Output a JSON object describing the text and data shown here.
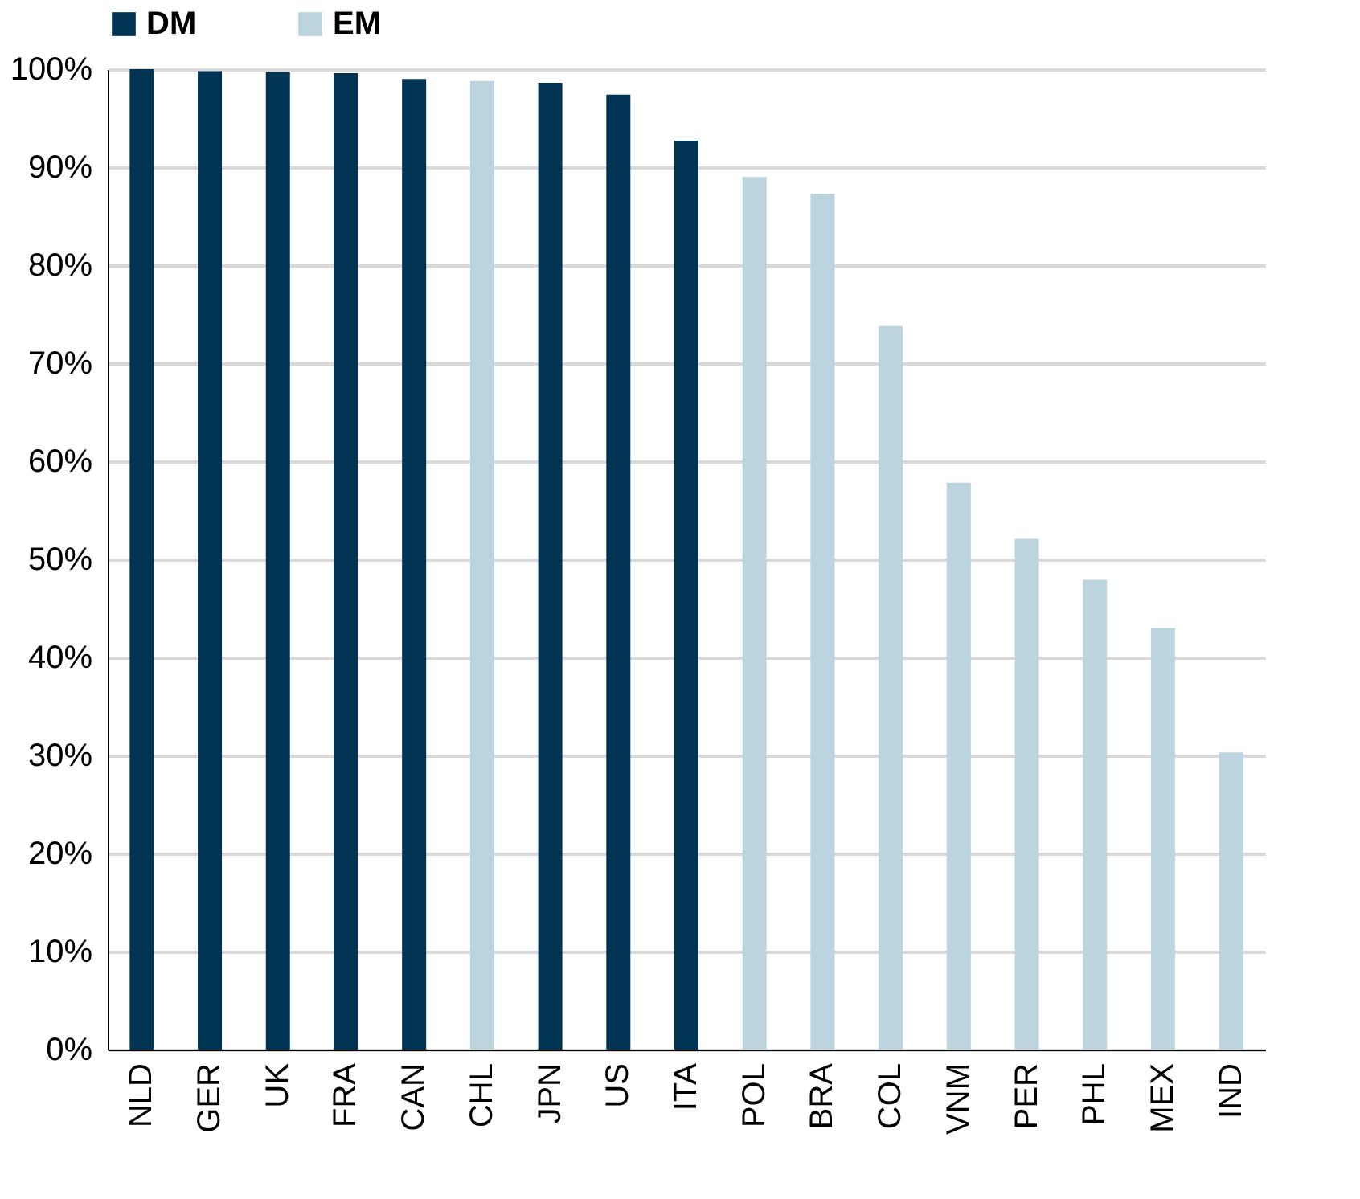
{
  "chart_data": {
    "type": "bar",
    "categories": [
      "NLD",
      "GER",
      "UK",
      "FRA",
      "CAN",
      "CHL",
      "JPN",
      "US",
      "ITA",
      "POL",
      "BRA",
      "COL",
      "VNM",
      "PER",
      "PHL",
      "MEX",
      "IND"
    ],
    "series": [
      {
        "name": "DM",
        "color": "#003452",
        "values": [
          100,
          99.8,
          99.7,
          99.6,
          99.0,
          null,
          98.6,
          97.4,
          92.7,
          null,
          null,
          null,
          null,
          null,
          null,
          null,
          null
        ]
      },
      {
        "name": "EM",
        "color": "#bcd4de",
        "values": [
          null,
          null,
          null,
          null,
          null,
          98.8,
          null,
          null,
          null,
          89.0,
          87.3,
          73.8,
          57.8,
          52.1,
          47.9,
          43.0,
          30.3
        ]
      }
    ],
    "ylim": [
      0,
      100
    ],
    "yticks": [
      {
        "value": 0,
        "label": "0%"
      },
      {
        "value": 10,
        "label": "10%"
      },
      {
        "value": 20,
        "label": "20%"
      },
      {
        "value": 30,
        "label": "30%"
      },
      {
        "value": 40,
        "label": "40%"
      },
      {
        "value": 50,
        "label": "50%"
      },
      {
        "value": 60,
        "label": "60%"
      },
      {
        "value": 70,
        "label": "70%"
      },
      {
        "value": 80,
        "label": "80%"
      },
      {
        "value": 90,
        "label": "90%"
      },
      {
        "value": 100,
        "label": "100%"
      }
    ],
    "grid": "y",
    "legend": "top"
  }
}
